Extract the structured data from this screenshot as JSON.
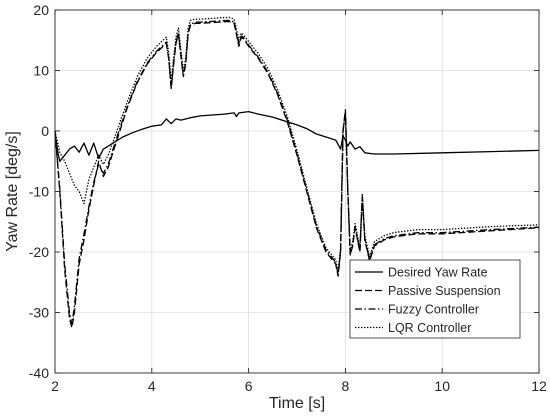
{
  "chart_data": {
    "type": "line",
    "xlabel": "Time [s]",
    "ylabel": "Yaw Rate [deg/s]",
    "xlim": [
      2,
      12
    ],
    "ylim": [
      -40,
      20
    ],
    "xticks": [
      2,
      4,
      6,
      8,
      10,
      12
    ],
    "yticks": [
      -40,
      -30,
      -20,
      -10,
      0,
      10,
      20
    ],
    "grid": true,
    "legend_position": "bottom-right",
    "colors": {
      "lines": "#000000",
      "grid": "#dcdcdc",
      "axes": "#262626"
    },
    "series": [
      {
        "name": "Desired Yaw Rate",
        "style": "solid",
        "x": [
          2.0,
          2.03,
          2.07,
          2.1,
          2.2,
          2.3,
          2.4,
          2.5,
          2.6,
          2.7,
          2.8,
          2.9,
          3.0,
          3.2,
          3.4,
          3.6,
          3.8,
          4.0,
          4.2,
          4.3,
          4.4,
          4.5,
          4.6,
          4.8,
          5.0,
          5.5,
          5.7,
          5.75,
          5.8,
          6.0,
          6.2,
          6.5,
          6.8,
          7.0,
          7.2,
          7.4,
          7.6,
          7.8,
          7.9,
          7.95,
          8.0,
          8.05,
          8.1,
          8.2,
          8.3,
          8.4,
          8.6,
          9.0,
          10.0,
          11.0,
          12.0
        ],
        "y": [
          -0.5,
          -2.0,
          -4.0,
          -5.0,
          -4.0,
          -3.0,
          -2.5,
          -3.5,
          -2.0,
          -4.0,
          -2.0,
          -4.5,
          -3.0,
          -2.0,
          -1.0,
          -0.3,
          0.3,
          0.8,
          1.0,
          2.0,
          1.2,
          2.0,
          1.8,
          2.2,
          2.5,
          2.8,
          3.0,
          2.4,
          3.0,
          3.2,
          2.8,
          2.3,
          1.5,
          1.0,
          0.4,
          -0.5,
          -1.0,
          -1.5,
          -3.0,
          -0.8,
          -1.5,
          -2.5,
          -1.8,
          -3.0,
          -2.6,
          -3.6,
          -3.8,
          -3.8,
          -3.6,
          -3.4,
          -3.2
        ]
      },
      {
        "name": "Passive Suspension",
        "style": "dashed",
        "x": [
          2.0,
          2.1,
          2.2,
          2.3,
          2.35,
          2.4,
          2.5,
          2.6,
          2.7,
          2.8,
          2.9,
          3.0,
          3.1,
          3.3,
          3.5,
          3.7,
          3.9,
          4.1,
          4.3,
          4.35,
          4.4,
          4.45,
          4.5,
          4.55,
          4.6,
          4.65,
          4.7,
          4.75,
          4.8,
          4.9,
          5.0,
          5.2,
          5.4,
          5.6,
          5.7,
          5.8,
          5.85,
          5.9,
          6.0,
          6.2,
          6.4,
          6.6,
          6.8,
          7.0,
          7.2,
          7.4,
          7.6,
          7.8,
          7.85,
          7.9,
          7.95,
          8.0,
          8.05,
          8.1,
          8.15,
          8.2,
          8.3,
          8.35,
          8.4,
          8.5,
          8.6,
          8.8,
          9.0,
          9.5,
          10.0,
          11.0,
          12.0
        ],
        "y": [
          0.0,
          -10.0,
          -23.0,
          -31.0,
          -32.5,
          -30.0,
          -22.0,
          -18.0,
          -13.0,
          -9.0,
          -5.0,
          -7.5,
          -6.0,
          -1.0,
          4.0,
          8.0,
          11.0,
          13.0,
          14.5,
          12.0,
          7.0,
          11.0,
          14.5,
          16.0,
          12.5,
          9.0,
          11.0,
          16.0,
          17.5,
          17.8,
          17.8,
          17.9,
          18.0,
          18.1,
          17.8,
          14.0,
          15.5,
          15.2,
          14.0,
          12.0,
          9.5,
          6.0,
          1.5,
          -4.0,
          -10.0,
          -16.0,
          -20.0,
          -22.0,
          -24.0,
          -20.0,
          0.0,
          3.5,
          -10.0,
          -20.5,
          -19.0,
          -16.0,
          -20.0,
          -11.0,
          -18.0,
          -21.5,
          -19.0,
          -18.0,
          -17.5,
          -17.0,
          -17.0,
          -16.5,
          -16.0
        ]
      },
      {
        "name": "Fuzzy Controller",
        "style": "dashdot",
        "x": [
          2.0,
          2.1,
          2.2,
          2.3,
          2.35,
          2.4,
          2.5,
          2.6,
          2.7,
          2.8,
          2.9,
          3.0,
          3.1,
          3.3,
          3.5,
          3.7,
          3.9,
          4.1,
          4.3,
          4.35,
          4.4,
          4.45,
          4.5,
          4.55,
          4.6,
          4.65,
          4.7,
          4.75,
          4.8,
          4.9,
          5.0,
          5.2,
          5.4,
          5.6,
          5.7,
          5.8,
          5.85,
          5.9,
          6.0,
          6.2,
          6.4,
          6.6,
          6.8,
          7.0,
          7.2,
          7.4,
          7.6,
          7.8,
          7.85,
          7.9,
          7.95,
          8.0,
          8.05,
          8.1,
          8.15,
          8.2,
          8.3,
          8.35,
          8.4,
          8.5,
          8.6,
          8.8,
          9.0,
          9.5,
          10.0,
          11.0,
          12.0
        ],
        "y": [
          0.0,
          -9.5,
          -22.0,
          -30.0,
          -32.0,
          -29.0,
          -21.0,
          -17.0,
          -12.5,
          -8.5,
          -5.5,
          -7.0,
          -5.5,
          -0.5,
          4.2,
          8.2,
          11.2,
          13.2,
          14.7,
          12.0,
          7.2,
          11.2,
          14.7,
          16.2,
          12.7,
          9.2,
          11.2,
          16.2,
          17.7,
          18.0,
          18.0,
          18.1,
          18.2,
          18.3,
          18.0,
          14.3,
          15.7,
          15.4,
          14.2,
          12.2,
          9.7,
          6.2,
          1.8,
          -3.7,
          -9.7,
          -15.7,
          -19.7,
          -21.7,
          -23.7,
          -19.7,
          0.0,
          3.2,
          -9.7,
          -20.3,
          -18.8,
          -15.8,
          -19.8,
          -10.8,
          -17.8,
          -21.3,
          -18.8,
          -17.8,
          -17.3,
          -16.8,
          -16.8,
          -16.3,
          -15.9
        ]
      },
      {
        "name": "LQR Controller",
        "style": "dotted",
        "x": [
          2.0,
          2.1,
          2.2,
          2.3,
          2.4,
          2.5,
          2.6,
          2.7,
          2.8,
          2.9,
          3.0,
          3.1,
          3.3,
          3.5,
          3.7,
          3.9,
          4.1,
          4.3,
          4.35,
          4.4,
          4.45,
          4.5,
          4.55,
          4.6,
          4.65,
          4.7,
          4.75,
          4.8,
          4.9,
          5.0,
          5.2,
          5.4,
          5.6,
          5.7,
          5.8,
          5.85,
          5.9,
          6.0,
          6.2,
          6.4,
          6.6,
          6.8,
          7.0,
          7.2,
          7.4,
          7.6,
          7.8,
          7.85,
          7.9,
          7.95,
          8.0,
          8.05,
          8.1,
          8.15,
          8.2,
          8.3,
          8.35,
          8.4,
          8.5,
          8.6,
          8.8,
          9.0,
          9.5,
          10.0,
          11.0,
          12.0
        ],
        "y": [
          0.0,
          -3.5,
          -5.0,
          -7.0,
          -9.0,
          -10.0,
          -12.0,
          -8.0,
          -6.0,
          -4.0,
          -5.5,
          -4.0,
          0.5,
          5.0,
          9.0,
          12.0,
          14.0,
          15.5,
          13.0,
          8.0,
          12.0,
          15.5,
          17.0,
          13.5,
          10.0,
          12.0,
          17.0,
          18.3,
          18.5,
          18.5,
          18.6,
          18.7,
          18.8,
          18.5,
          15.0,
          16.2,
          15.8,
          14.8,
          12.8,
          10.3,
          6.8,
          2.4,
          -3.2,
          -9.3,
          -15.3,
          -19.3,
          -21.3,
          -23.3,
          -19.3,
          0.0,
          2.8,
          -9.3,
          -19.8,
          -18.3,
          -15.3,
          -19.3,
          -10.3,
          -17.3,
          -20.8,
          -18.3,
          -17.3,
          -16.8,
          -16.3,
          -16.3,
          -15.8,
          -15.5
        ]
      }
    ]
  }
}
